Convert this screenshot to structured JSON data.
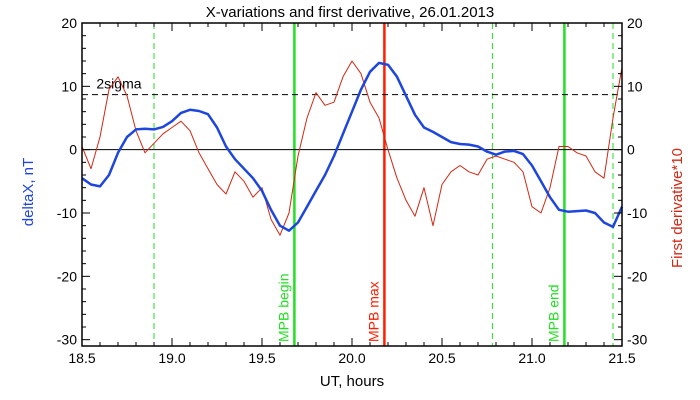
{
  "chart_data": {
    "type": "line",
    "title": "X-variations and first derivative, 26.01.2013",
    "xlabel": "UT, hours",
    "ylabel_left": "deltaX, nT",
    "ylabel_right": "First derivative*10",
    "xlim": [
      18.5,
      21.5
    ],
    "ylim_left": [
      -31,
      20
    ],
    "ylim_right": [
      -31,
      20
    ],
    "x_ticks": [
      "18.5",
      "19.0",
      "19.5",
      "20.0",
      "20.5",
      "21.0",
      "21.5"
    ],
    "y_ticks": [
      "-30",
      "-20",
      "-10",
      "0",
      "10",
      "20"
    ],
    "colors": {
      "deltaX": "#1e46dc",
      "derivative": "#d22814",
      "mpb": "#22e022",
      "mpb_max": "#ff1e00",
      "axes": "#000000"
    },
    "reference_lines": {
      "zero": 0,
      "sigma_level": 8.7,
      "sigma_label": "2sigma"
    },
    "vertical_markers": [
      {
        "label": "MPB begin",
        "x": 19.68,
        "color": "#22e022",
        "style": "solid"
      },
      {
        "label": "MPB max",
        "x": 20.18,
        "color": "#ff1e00",
        "style": "solid"
      },
      {
        "label": "MPB end",
        "x": 21.18,
        "color": "#22e022",
        "style": "solid"
      },
      {
        "label": "",
        "x": 18.9,
        "color": "#22e022",
        "style": "dashed"
      },
      {
        "label": "",
        "x": 20.78,
        "color": "#22e022",
        "style": "dashed"
      },
      {
        "label": "",
        "x": 21.45,
        "color": "#22e022",
        "style": "dashed"
      }
    ],
    "series": [
      {
        "name": "deltaX",
        "axis": "left",
        "x": [
          18.5,
          18.55,
          18.6,
          18.65,
          18.7,
          18.75,
          18.8,
          18.85,
          18.9,
          18.95,
          19.0,
          19.05,
          19.1,
          19.15,
          19.2,
          19.25,
          19.3,
          19.35,
          19.4,
          19.45,
          19.5,
          19.55,
          19.6,
          19.65,
          19.7,
          19.75,
          19.8,
          19.85,
          19.9,
          19.95,
          20.0,
          20.05,
          20.1,
          20.15,
          20.2,
          20.25,
          20.3,
          20.35,
          20.4,
          20.45,
          20.5,
          20.55,
          20.6,
          20.65,
          20.7,
          20.75,
          20.8,
          20.85,
          20.9,
          20.95,
          21.0,
          21.05,
          21.1,
          21.15,
          21.2,
          21.25,
          21.3,
          21.35,
          21.4,
          21.45,
          21.5
        ],
        "y": [
          -4.5,
          -5.5,
          -5.8,
          -4.0,
          -0.5,
          2.0,
          3.2,
          3.3,
          3.2,
          3.6,
          4.5,
          5.8,
          6.3,
          6.1,
          5.6,
          3.5,
          0.5,
          -1.5,
          -3.0,
          -4.5,
          -6.5,
          -9.5,
          -12.0,
          -12.8,
          -11.5,
          -9.0,
          -6.5,
          -4.0,
          -1.0,
          2.5,
          6.0,
          9.5,
          12.3,
          13.7,
          13.4,
          11.5,
          8.5,
          5.5,
          3.5,
          2.8,
          2.0,
          1.2,
          0.9,
          0.8,
          0.5,
          -0.3,
          -0.8,
          -0.3,
          -0.2,
          -0.7,
          -2.5,
          -5.0,
          -7.5,
          -9.5,
          -9.8,
          -9.7,
          -9.6,
          -10.0,
          -11.5,
          -12.2,
          -9.0
        ]
      },
      {
        "name": "First derivative*10",
        "axis": "right",
        "x": [
          18.5,
          18.55,
          18.6,
          18.65,
          18.7,
          18.75,
          18.8,
          18.85,
          18.9,
          18.95,
          19.0,
          19.05,
          19.1,
          19.15,
          19.2,
          19.25,
          19.3,
          19.35,
          19.4,
          19.45,
          19.5,
          19.55,
          19.6,
          19.65,
          19.7,
          19.75,
          19.8,
          19.85,
          19.9,
          19.95,
          20.0,
          20.05,
          20.1,
          20.15,
          20.2,
          20.25,
          20.3,
          20.35,
          20.4,
          20.45,
          20.5,
          20.55,
          20.6,
          20.65,
          20.7,
          20.75,
          20.8,
          20.85,
          20.9,
          20.95,
          21.0,
          21.05,
          21.1,
          21.15,
          21.2,
          21.25,
          21.3,
          21.35,
          21.4,
          21.45,
          21.5
        ],
        "y": [
          0.5,
          -3.0,
          2.0,
          9.5,
          11.5,
          8.5,
          3.0,
          -0.5,
          1.0,
          2.5,
          3.5,
          4.5,
          3.0,
          -0.5,
          -3.0,
          -5.5,
          -7.0,
          -3.5,
          -5.0,
          -7.5,
          -6.0,
          -11.0,
          -13.5,
          -10.0,
          -1.0,
          5.0,
          9.0,
          7.0,
          7.5,
          11.5,
          14.0,
          12.0,
          7.5,
          5.0,
          0.0,
          -4.5,
          -8.0,
          -10.5,
          -6.0,
          -12.0,
          -5.5,
          -3.5,
          -2.5,
          -3.5,
          -4.0,
          -1.5,
          -1.0,
          -1.5,
          -2.0,
          -3.5,
          -9.0,
          -10.0,
          -6.0,
          0.5,
          0.5,
          -0.5,
          -1.0,
          -3.5,
          -4.5,
          5.0,
          13.0
        ]
      }
    ]
  }
}
